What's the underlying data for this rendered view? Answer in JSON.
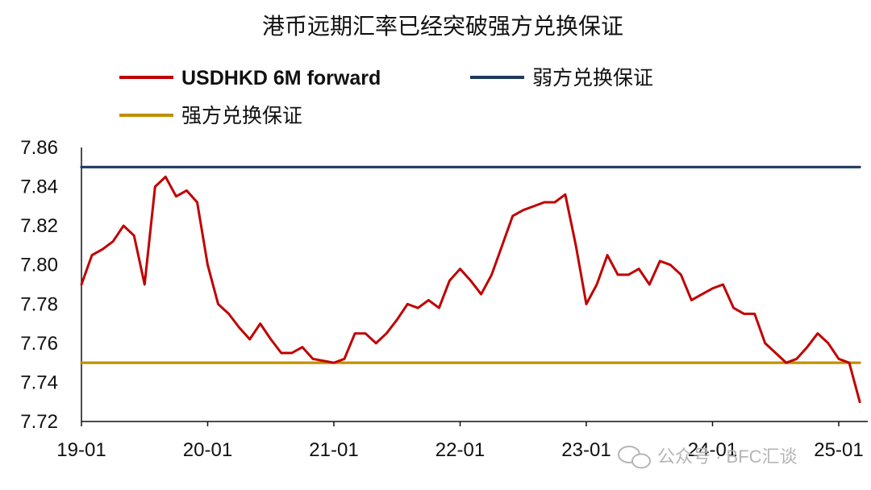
{
  "chart_data": {
    "type": "line",
    "title": "港币远期汇率已经突破强方兑换保证",
    "xlabel": "",
    "ylabel": "",
    "x_ticks": [
      "19-01",
      "20-01",
      "21-01",
      "22-01",
      "23-01",
      "24-01",
      "25-01"
    ],
    "y_ticks": [
      "7.86",
      "7.84",
      "7.82",
      "7.80",
      "7.78",
      "7.76",
      "7.74",
      "7.72"
    ],
    "ylim": [
      7.72,
      7.86
    ],
    "xlim": [
      "2019-01",
      "2025-03"
    ],
    "grid": false,
    "legend_position": "top-left",
    "series": [
      {
        "name": "USDHKD 6M forward",
        "color": "#c00000",
        "points": [
          [
            "2019-01",
            7.79
          ],
          [
            "2019-02",
            7.805
          ],
          [
            "2019-03",
            7.808
          ],
          [
            "2019-04",
            7.812
          ],
          [
            "2019-05",
            7.82
          ],
          [
            "2019-06",
            7.815
          ],
          [
            "2019-07",
            7.79
          ],
          [
            "2019-08",
            7.84
          ],
          [
            "2019-09",
            7.845
          ],
          [
            "2019-10",
            7.835
          ],
          [
            "2019-11",
            7.838
          ],
          [
            "2019-12",
            7.832
          ],
          [
            "2020-01",
            7.8
          ],
          [
            "2020-02",
            7.78
          ],
          [
            "2020-03",
            7.775
          ],
          [
            "2020-04",
            7.768
          ],
          [
            "2020-05",
            7.762
          ],
          [
            "2020-06",
            7.77
          ],
          [
            "2020-07",
            7.762
          ],
          [
            "2020-08",
            7.755
          ],
          [
            "2020-09",
            7.755
          ],
          [
            "2020-10",
            7.758
          ],
          [
            "2020-11",
            7.752
          ],
          [
            "2020-12",
            7.751
          ],
          [
            "2021-01",
            7.75
          ],
          [
            "2021-02",
            7.752
          ],
          [
            "2021-03",
            7.765
          ],
          [
            "2021-04",
            7.765
          ],
          [
            "2021-05",
            7.76
          ],
          [
            "2021-06",
            7.765
          ],
          [
            "2021-07",
            7.772
          ],
          [
            "2021-08",
            7.78
          ],
          [
            "2021-09",
            7.778
          ],
          [
            "2021-10",
            7.782
          ],
          [
            "2021-11",
            7.778
          ],
          [
            "2021-12",
            7.792
          ],
          [
            "2022-01",
            7.798
          ],
          [
            "2022-02",
            7.792
          ],
          [
            "2022-03",
            7.785
          ],
          [
            "2022-04",
            7.795
          ],
          [
            "2022-05",
            7.81
          ],
          [
            "2022-06",
            7.825
          ],
          [
            "2022-07",
            7.828
          ],
          [
            "2022-08",
            7.83
          ],
          [
            "2022-09",
            7.832
          ],
          [
            "2022-10",
            7.832
          ],
          [
            "2022-11",
            7.836
          ],
          [
            "2022-12",
            7.81
          ],
          [
            "2023-01",
            7.78
          ],
          [
            "2023-02",
            7.79
          ],
          [
            "2023-03",
            7.805
          ],
          [
            "2023-04",
            7.795
          ],
          [
            "2023-05",
            7.795
          ],
          [
            "2023-06",
            7.798
          ],
          [
            "2023-07",
            7.79
          ],
          [
            "2023-08",
            7.802
          ],
          [
            "2023-09",
            7.8
          ],
          [
            "2023-10",
            7.795
          ],
          [
            "2023-11",
            7.782
          ],
          [
            "2023-12",
            7.785
          ],
          [
            "2024-01",
            7.788
          ],
          [
            "2024-02",
            7.79
          ],
          [
            "2024-03",
            7.778
          ],
          [
            "2024-04",
            7.775
          ],
          [
            "2024-05",
            7.775
          ],
          [
            "2024-06",
            7.76
          ],
          [
            "2024-07",
            7.755
          ],
          [
            "2024-08",
            7.75
          ],
          [
            "2024-09",
            7.752
          ],
          [
            "2024-10",
            7.758
          ],
          [
            "2024-11",
            7.765
          ],
          [
            "2024-12",
            7.76
          ],
          [
            "2025-01",
            7.752
          ],
          [
            "2025-02",
            7.75
          ],
          [
            "2025-03",
            7.73
          ]
        ]
      },
      {
        "name": "弱方兑换保证",
        "color": "#1f3a5f",
        "points": [
          [
            "2019-01",
            7.85
          ],
          [
            "2025-03",
            7.85
          ]
        ]
      },
      {
        "name": "强方兑换保证",
        "color": "#bf9000",
        "points": [
          [
            "2019-01",
            7.75
          ],
          [
            "2025-03",
            7.75
          ]
        ]
      }
    ],
    "watermark": "公众号 · BFC汇谈"
  }
}
